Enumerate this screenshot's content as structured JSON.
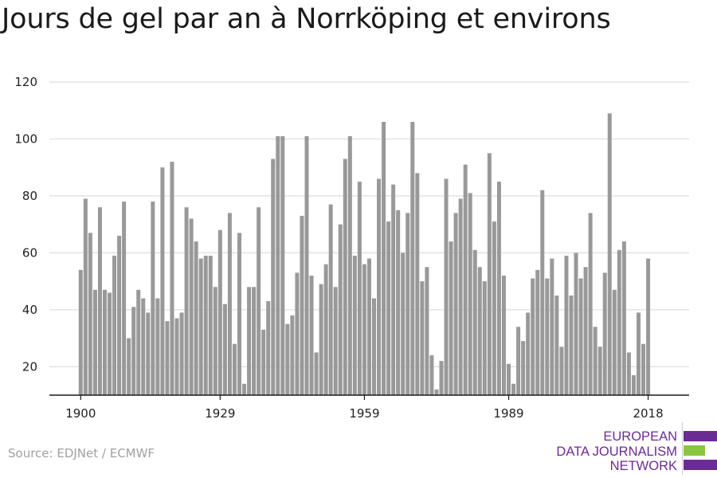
{
  "chart_data": {
    "type": "bar",
    "title": "Jours de gel par an à Norrköping et environs",
    "xlabel": "",
    "ylabel": "",
    "x_start": 1900,
    "x_end": 2018,
    "x_ticks": [
      "1900",
      "1929",
      "1959",
      "1989",
      "2018"
    ],
    "y_ticks": [
      "20",
      "40",
      "60",
      "80",
      "100",
      "120"
    ],
    "ylim": [
      10,
      120
    ],
    "grid": true,
    "bar_color": "#999999",
    "values": [
      54,
      79,
      67,
      47,
      76,
      47,
      46,
      59,
      66,
      78,
      30,
      41,
      47,
      44,
      39,
      78,
      44,
      90,
      36,
      92,
      37,
      39,
      76,
      72,
      64,
      58,
      59,
      59,
      48,
      68,
      42,
      74,
      28,
      67,
      14,
      48,
      48,
      76,
      33,
      43,
      93,
      101,
      101,
      35,
      38,
      53,
      73,
      101,
      52,
      25,
      49,
      56,
      77,
      48,
      70,
      93,
      101,
      59,
      85,
      56,
      58,
      44,
      86,
      106,
      71,
      84,
      75,
      60,
      74,
      106,
      88,
      50,
      55,
      24,
      12,
      22,
      86,
      64,
      74,
      79,
      91,
      81,
      61,
      55,
      50,
      95,
      71,
      85,
      52,
      21,
      14,
      34,
      29,
      39,
      51,
      54,
      82,
      51,
      58,
      45,
      27,
      59,
      45,
      60,
      51,
      55,
      74,
      34,
      27,
      53,
      109,
      47,
      61,
      64,
      25,
      17,
      39,
      28,
      58
    ]
  },
  "source": "Source: EDJNet / ECMWF",
  "logo": {
    "lines": [
      "EUROPEAN",
      "DATA JOURNALISM",
      "NETWORK"
    ],
    "text_color": "#6b2c91",
    "bar_colors": [
      "#6b2c91",
      "#8cc63f",
      "#6b2c91"
    ]
  }
}
